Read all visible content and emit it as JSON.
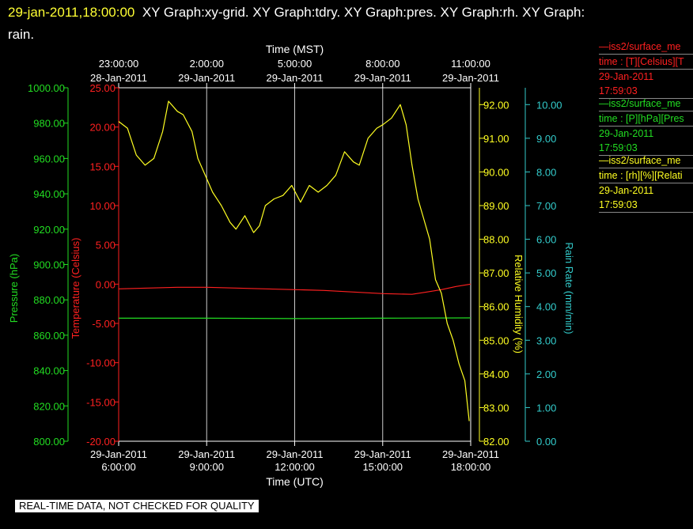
{
  "header": {
    "timestamp": "29-jan-2011,18:00:00",
    "graphs": "XY Graph:xy-grid.  XY Graph:tdry.  XY Graph:pres.  XY Graph:rh.  XY Graph:",
    "graphs_cont": "rain."
  },
  "colors": {
    "temperature": "#ff2020",
    "pressure": "#22dd22",
    "humidity": "#ffff22",
    "rain": "#33cccc",
    "frame": "#ffffff",
    "grid": "#cccccc"
  },
  "legend": [
    {
      "lines": [
        "—iss2/surface_me",
        "time : [T][Celsius][T",
        "29-Jan-2011",
        "17:59:03"
      ],
      "color": "#ff2020"
    },
    {
      "lines": [
        "—iss2/surface_me",
        "time : [P][hPa][Pres",
        "29-Jan-2011",
        "17:59:03"
      ],
      "color": "#22dd22"
    },
    {
      "lines": [
        "—iss2/surface_me",
        "time : [rh][%][Relati",
        "29-Jan-2011",
        "17:59:03"
      ],
      "color": "#ffff22"
    }
  ],
  "banner": "REAL-TIME DATA, NOT CHECKED FOR QUALITY",
  "chart_data": {
    "type": "line",
    "grid": true,
    "x_bottom": {
      "label": "Time (UTC)",
      "range": [
        "29-Jan-2011 6:00:00",
        "29-Jan-2011 18:00:00"
      ],
      "ticks": [
        {
          "hour": 6,
          "date": "29-Jan-2011",
          "time": "6:00:00"
        },
        {
          "hour": 9,
          "date": "29-Jan-2011",
          "time": "9:00:00"
        },
        {
          "hour": 12,
          "date": "29-Jan-2011",
          "time": "12:00:00"
        },
        {
          "hour": 15,
          "date": "29-Jan-2011",
          "time": "15:00:00"
        },
        {
          "hour": 18,
          "date": "29-Jan-2011",
          "time": "18:00:00"
        }
      ]
    },
    "x_top": {
      "label": "Time (MST)",
      "ticks": [
        {
          "hour": 6,
          "date": "28-Jan-2011",
          "time": "23:00:00"
        },
        {
          "hour": 9,
          "date": "29-Jan-2011",
          "time": "2:00:00"
        },
        {
          "hour": 12,
          "date": "29-Jan-2011",
          "time": "5:00:00"
        },
        {
          "hour": 15,
          "date": "29-Jan-2011",
          "time": "8:00:00"
        },
        {
          "hour": 18,
          "date": "29-Jan-2011",
          "time": "11:00:00"
        }
      ]
    },
    "axes": {
      "pressure": {
        "label": "Pressure (hPa)",
        "range": [
          800,
          1000
        ],
        "ticks": [
          "800.00",
          "820.00",
          "840.00",
          "860.00",
          "880.00",
          "900.00",
          "920.00",
          "940.00",
          "960.00",
          "980.00",
          "1000.00"
        ]
      },
      "temperature": {
        "label": "Temperature (Celsius)",
        "range": [
          -20,
          25
        ],
        "ticks": [
          "-20.00",
          "-15.00",
          "-10.00",
          "-5.00",
          "0.00",
          "5.00",
          "10.00",
          "15.00",
          "20.00",
          "25.00"
        ]
      },
      "humidity": {
        "label": "Relative Humidity (%)",
        "range": [
          82,
          92.5
        ],
        "ticks": [
          "82.00",
          "83.00",
          "84.00",
          "85.00",
          "86.00",
          "87.00",
          "88.00",
          "89.00",
          "90.00",
          "91.00",
          "92.00"
        ]
      },
      "rain": {
        "label": "Rain Rate (mm/min)",
        "range": [
          0,
          10.5
        ],
        "ticks": [
          "0.00",
          "1.00",
          "2.00",
          "3.00",
          "4.00",
          "5.00",
          "6.00",
          "7.00",
          "8.00",
          "9.00",
          "10.00"
        ]
      }
    },
    "series": [
      {
        "name": "iss2/surface_me time : [T][Celsius][T",
        "axis": "temperature",
        "color": "#ff2020",
        "x": [
          6.0,
          7.0,
          8.0,
          9.0,
          10.0,
          11.0,
          12.0,
          13.0,
          14.0,
          15.0,
          16.0,
          16.5,
          17.0,
          17.5,
          18.0
        ],
        "y": [
          -0.6,
          -0.5,
          -0.4,
          -0.4,
          -0.5,
          -0.6,
          -0.7,
          -0.8,
          -1.0,
          -1.2,
          -1.3,
          -1.0,
          -0.7,
          -0.3,
          0.0
        ]
      },
      {
        "name": "iss2/surface_me time : [P][hPa][Pres",
        "axis": "pressure",
        "color": "#22dd22",
        "x": [
          6.0,
          9.0,
          12.0,
          15.0,
          18.0
        ],
        "y": [
          869.6,
          869.6,
          869.4,
          869.6,
          869.8
        ]
      },
      {
        "name": "iss2/surface_me time : [rh][%][Relati",
        "axis": "humidity",
        "color": "#ffff22",
        "x": [
          6.0,
          6.3,
          6.6,
          6.9,
          7.2,
          7.5,
          7.7,
          8.0,
          8.2,
          8.5,
          8.7,
          9.0,
          9.2,
          9.5,
          9.8,
          10.0,
          10.3,
          10.6,
          10.8,
          11.0,
          11.3,
          11.6,
          11.9,
          12.2,
          12.5,
          12.8,
          13.1,
          13.4,
          13.7,
          14.0,
          14.2,
          14.5,
          14.8,
          15.0,
          15.3,
          15.6,
          15.8,
          16.0,
          16.2,
          16.4,
          16.6,
          16.8,
          17.0,
          17.2,
          17.4,
          17.6,
          17.8,
          17.95
        ],
        "y": [
          91.5,
          91.3,
          90.5,
          90.2,
          90.4,
          91.2,
          92.1,
          91.8,
          91.7,
          91.2,
          90.4,
          89.8,
          89.4,
          89.0,
          88.5,
          88.3,
          88.7,
          88.2,
          88.4,
          89.0,
          89.2,
          89.3,
          89.6,
          89.1,
          89.6,
          89.4,
          89.6,
          89.9,
          90.6,
          90.3,
          90.2,
          91.0,
          91.3,
          91.4,
          91.6,
          92.0,
          91.4,
          90.2,
          89.2,
          88.6,
          88.0,
          86.8,
          86.4,
          85.5,
          85.0,
          84.3,
          83.8,
          82.6
        ]
      }
    ]
  }
}
